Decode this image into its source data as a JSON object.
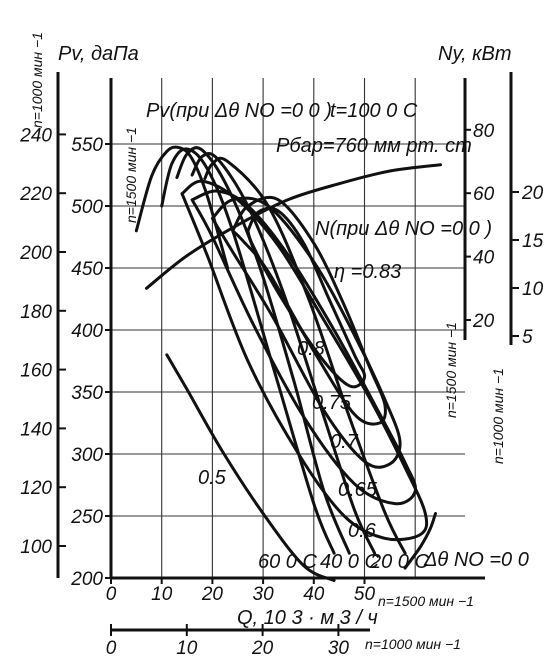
{
  "chart_data": {
    "type": "line",
    "axes": {
      "pv_label": "Pv, даПа",
      "ny_label": "Ny, кВт",
      "q_label": "Q, 10 3 · м 3 / ч",
      "n1000_label": "n=1000 мин −1",
      "n1500_label": "n=1500 мин −1",
      "pv1500_ticks": [
        "550",
        "500",
        "450",
        "400",
        "350",
        "300",
        "250",
        "200"
      ],
      "pv1000_ticks": [
        "240",
        "220",
        "200",
        "180",
        "160",
        "140",
        "120",
        "100"
      ],
      "ny1500_ticks": [
        "80",
        "60",
        "40",
        "20"
      ],
      "ny1000_ticks": [
        "20",
        "15",
        "10",
        "5"
      ],
      "q1500_ticks": [
        "0",
        "10",
        "20",
        "30",
        "40",
        "50"
      ],
      "q1000_ticks": [
        "0",
        "10",
        "20",
        "30"
      ],
      "q1500_range": [
        0,
        55
      ],
      "pv1500_range": [
        200,
        600
      ]
    },
    "annotations": {
      "t_label": "t=100 0 C",
      "pbar_label": "Pбар=760 мм рт. ст",
      "pv_curve_label": "Pv(при Δθ NO =0 0 )",
      "n_curve_label": "N(при Δθ NO =0 0 )",
      "d_theta_label": "Δθ NO =0 0"
    },
    "efficiency_labels": [
      "η =0.83",
      "0.8",
      "0.75",
      "0.7",
      "0.65",
      "0.6",
      "0.5"
    ],
    "temperature_labels": [
      "60 0 C",
      "40 0 C",
      "20 0 C"
    ],
    "pressure_curves": [
      {
        "q": [
          5,
          8,
          11,
          13.5,
          16,
          19,
          23
        ],
        "pv": [
          480,
          524,
          544,
          547,
          538,
          508,
          450
        ]
      },
      {
        "q": [
          10,
          12,
          15,
          19,
          24,
          32,
          40,
          44
        ],
        "pv": [
          500,
          534,
          546,
          530,
          480,
          370,
          260,
          220
        ]
      },
      {
        "q": [
          13,
          15,
          18,
          23,
          29,
          36,
          42,
          47
        ],
        "pv": [
          523,
          542,
          545,
          515,
          455,
          360,
          270,
          220
        ]
      },
      {
        "q": [
          16,
          18,
          21,
          27,
          34,
          42,
          48,
          52
        ],
        "pv": [
          525,
          540,
          538,
          500,
          430,
          330,
          255,
          220
        ]
      },
      {
        "q": [
          18.5,
          20,
          23,
          31,
          39,
          47,
          54,
          58
        ],
        "pv": [
          522,
          534,
          536,
          500,
          425,
          330,
          253,
          220
        ]
      }
    ],
    "power_curve": {
      "q": [
        7,
        15,
        25,
        35,
        45,
        55,
        65
      ],
      "ny": [
        30,
        40.3,
        50,
        58,
        63,
        67,
        69
      ]
    },
    "efficiency_contours": [
      {
        "label": "0.83",
        "q": [
          27,
          29,
          33,
          38,
          43,
          48,
          50,
          47,
          41,
          33,
          28,
          27
        ],
        "pv": [
          480,
          495,
          496,
          470,
          425,
          380,
          362,
          355,
          380,
          430,
          468,
          480
        ]
      },
      {
        "label": "0.8",
        "q": [
          24,
          27,
          33,
          40,
          46,
          51,
          54,
          53,
          48,
          40,
          31,
          26,
          24
        ],
        "pv": [
          480,
          500,
          505,
          470,
          420,
          370,
          340,
          325,
          332,
          383,
          447,
          472,
          480
        ]
      },
      {
        "label": "0.75",
        "q": [
          20,
          24,
          31,
          40,
          48,
          54,
          57,
          55,
          50,
          42,
          32,
          24,
          20
        ],
        "pv": [
          490,
          505,
          500,
          455,
          396,
          344,
          310,
          292,
          294,
          335,
          410,
          463,
          490
        ]
      },
      {
        "label": "0.7",
        "q": [
          16,
          21,
          27,
          35,
          44,
          52,
          58,
          60,
          56,
          48,
          38,
          28,
          20,
          16
        ],
        "pv": [
          505,
          512,
          500,
          460,
          400,
          340,
          293,
          270,
          260,
          276,
          330,
          405,
          475,
          505
        ]
      },
      {
        "label": "0.65",
        "q": [
          14,
          18,
          25,
          33,
          42,
          51,
          58,
          62,
          61,
          54,
          46,
          37,
          27,
          19,
          14
        ],
        "pv": [
          510,
          520,
          505,
          468,
          408,
          345,
          289,
          252,
          235,
          232,
          250,
          300,
          375,
          460,
          510
        ]
      },
      {
        "label": "0.6",
        "q": [
          58,
          61,
          63,
          64
        ],
        "pv": [
          208,
          225,
          240,
          252
        ]
      },
      {
        "label": "0.5",
        "q": [
          11,
          15,
          22,
          30,
          38,
          44
        ],
        "pv": [
          380,
          352,
          302,
          252,
          210,
          198
        ]
      }
    ]
  }
}
